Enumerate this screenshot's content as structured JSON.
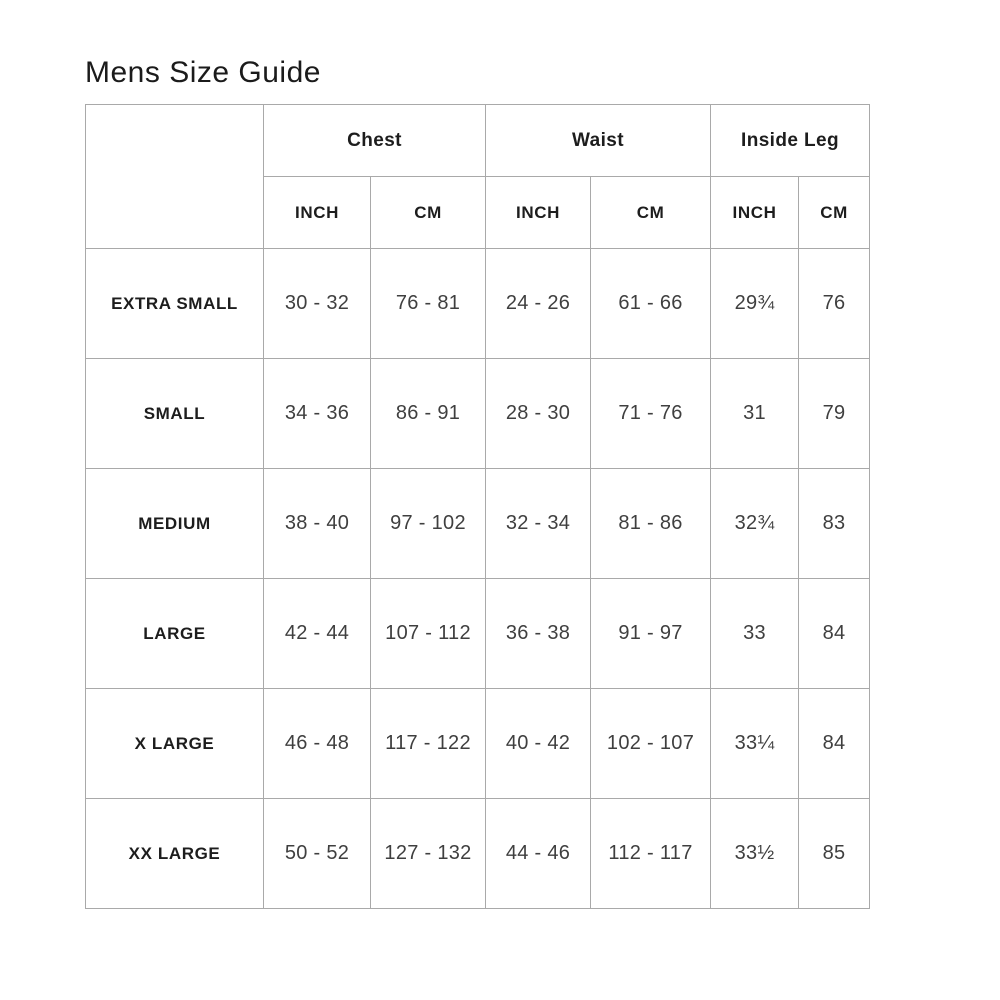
{
  "page": {
    "title": "Mens Size Guide"
  },
  "colors": {
    "background": "#ffffff",
    "border": "#a9a9a9",
    "heading_text": "#1d1d1d",
    "data_text": "#3f3f3f"
  },
  "table": {
    "column_groups": [
      {
        "label": "Chest"
      },
      {
        "label": "Waist"
      },
      {
        "label": "Inside Leg"
      }
    ],
    "unit_headers": {
      "inch": "INCH",
      "cm": "CM"
    },
    "rows": [
      {
        "size": "EXTRA SMALL",
        "chest_inch": "30 - 32",
        "chest_cm": "76 - 81",
        "waist_inch": "24 - 26",
        "waist_cm": "61 - 66",
        "leg_inch": "29¾",
        "leg_cm": "76"
      },
      {
        "size": "SMALL",
        "chest_inch": "34 - 36",
        "chest_cm": "86 - 91",
        "waist_inch": "28 - 30",
        "waist_cm": "71 - 76",
        "leg_inch": "31",
        "leg_cm": "79"
      },
      {
        "size": "MEDIUM",
        "chest_inch": "38 - 40",
        "chest_cm": "97 - 102",
        "waist_inch": "32 - 34",
        "waist_cm": "81 - 86",
        "leg_inch": "32¾",
        "leg_cm": "83"
      },
      {
        "size": "LARGE",
        "chest_inch": "42 - 44",
        "chest_cm": "107 - 112",
        "waist_inch": "36 - 38",
        "waist_cm": "91 - 97",
        "leg_inch": "33",
        "leg_cm": "84"
      },
      {
        "size": "X LARGE",
        "chest_inch": "46 - 48",
        "chest_cm": "117 - 122",
        "waist_inch": "40 - 42",
        "waist_cm": "102 - 107",
        "leg_inch": "33¼",
        "leg_cm": "84"
      },
      {
        "size": "XX LARGE",
        "chest_inch": "50 - 52",
        "chest_cm": "127 - 132",
        "waist_inch": "44 - 46",
        "waist_cm": "112 - 117",
        "leg_inch": "33½",
        "leg_cm": "85"
      }
    ]
  }
}
